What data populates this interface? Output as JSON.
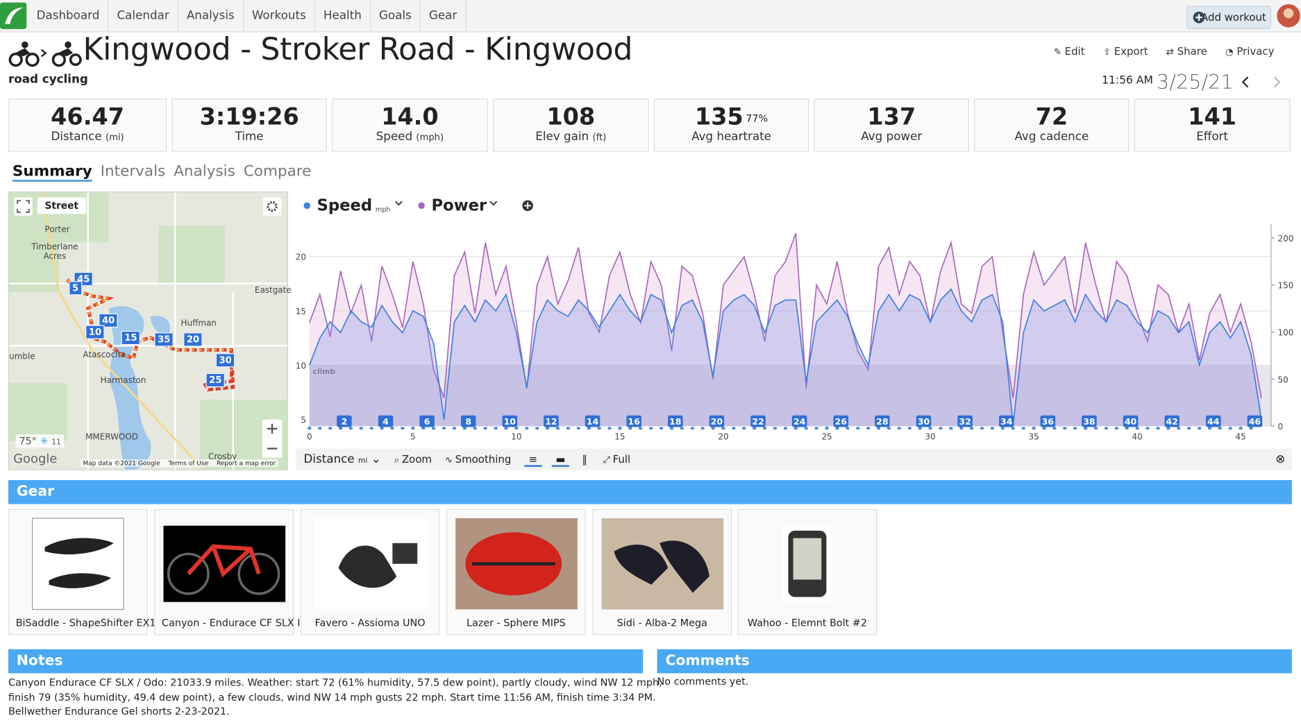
{
  "nav": {
    "items": [
      "Dashboard",
      "Calendar",
      "Analysis",
      "Workouts",
      "Health",
      "Goals",
      "Gear"
    ],
    "add_workout": "Add workout"
  },
  "header": {
    "title": "Kingwood - Stroker Road - Kingwood",
    "sport": "road cycling",
    "actions": [
      "Edit",
      "Export",
      "Share",
      "Privacy"
    ],
    "time": "11:56 AM",
    "date": "3/25/21"
  },
  "stats": [
    {
      "value": "46.47",
      "label": "Distance",
      "unit": "(mi)"
    },
    {
      "value": "3:19:26",
      "label": "Time"
    },
    {
      "value": "14.0",
      "label": "Speed",
      "unit": "(mph)"
    },
    {
      "value": "108",
      "label": "Elev gain",
      "unit": "(ft)"
    },
    {
      "value": "135",
      "sup": "77%",
      "label": "Avg heartrate"
    },
    {
      "value": "137",
      "label": "Avg power"
    },
    {
      "value": "72",
      "label": "Avg cadence"
    },
    {
      "value": "141",
      "label": "Effort"
    }
  ],
  "tabs": [
    "Summary",
    "Intervals",
    "Analysis",
    "Compare"
  ],
  "map": {
    "view": "Street",
    "places": [
      "Porter",
      "Timberlane Acres",
      "Eastgate",
      "Huffman",
      "Atascocita",
      "Harmaston",
      "umble",
      "MMERWOOD",
      "Crosby"
    ],
    "markers": [
      "45",
      "5",
      "40",
      "10",
      "15",
      "35",
      "20",
      "30",
      "25"
    ],
    "temperature": "75°",
    "wind": "11",
    "logo": "Google",
    "attribution": "Map data ©2021 Google",
    "terms": "Terms of Use",
    "report": "Report a map error"
  },
  "chart_data": {
    "type": "line",
    "x": [
      0,
      0.5,
      1,
      1.5,
      2,
      2.5,
      3,
      3.5,
      4,
      4.5,
      5,
      5.5,
      6,
      6.5,
      7,
      7.5,
      8,
      8.5,
      9,
      9.5,
      10,
      10.5,
      11,
      11.5,
      12,
      12.5,
      13,
      13.5,
      14,
      14.5,
      15,
      15.5,
      16,
      16.5,
      17,
      17.5,
      18,
      18.5,
      19,
      19.5,
      20,
      20.5,
      21,
      21.5,
      22,
      22.5,
      23,
      23.5,
      24,
      24.5,
      25,
      25.5,
      26,
      26.5,
      27,
      27.5,
      28,
      28.5,
      29,
      29.5,
      30,
      30.5,
      31,
      31.5,
      32,
      32.5,
      33,
      33.5,
      34,
      34.5,
      35,
      35.5,
      36,
      36.5,
      37,
      37.5,
      38,
      38.5,
      39,
      39.5,
      40,
      40.5,
      41,
      41.5,
      42,
      42.5,
      43,
      43.5,
      44,
      44.5,
      45,
      45.5,
      46
    ],
    "series": [
      {
        "name": "Speed",
        "unit": "mph",
        "color": "#3f7fe0",
        "values": [
          10,
          12.5,
          14,
          13,
          15,
          14,
          13.5,
          15.5,
          14,
          13,
          15,
          14.5,
          12,
          5,
          14,
          15.5,
          14,
          16,
          15,
          16.5,
          13,
          8,
          14,
          16,
          15,
          14.5,
          16,
          15,
          13.5,
          15,
          16.5,
          15,
          14,
          16.5,
          16,
          13,
          15.5,
          16,
          14,
          9,
          15,
          16,
          16.5,
          15.5,
          13,
          15.5,
          16,
          16,
          8.5,
          14,
          15,
          16,
          14.5,
          12,
          10,
          15,
          16.5,
          15,
          16.5,
          16,
          14,
          16,
          17,
          15,
          14,
          16,
          16.5,
          14,
          4.5,
          13,
          16,
          15,
          15.5,
          16,
          14,
          16.5,
          15,
          14,
          16,
          15.5,
          14,
          13,
          15,
          14.5,
          13,
          14,
          10,
          13,
          14,
          12.5,
          14,
          11,
          5
        ]
      },
      {
        "name": "Power",
        "color": "#a567bd",
        "axis": "y2",
        "values": [
          110,
          140,
          95,
          165,
          120,
          150,
          90,
          170,
          140,
          105,
          175,
          130,
          60,
          30,
          160,
          185,
          120,
          195,
          140,
          170,
          110,
          40,
          150,
          180,
          130,
          155,
          190,
          120,
          100,
          160,
          185,
          140,
          110,
          175,
          150,
          80,
          170,
          160,
          120,
          50,
          150,
          165,
          180,
          140,
          90,
          160,
          175,
          205,
          40,
          150,
          130,
          175,
          120,
          80,
          60,
          170,
          190,
          140,
          175,
          160,
          110,
          165,
          195,
          130,
          120,
          170,
          180,
          100,
          30,
          140,
          185,
          150,
          165,
          180,
          120,
          195,
          150,
          110,
          175,
          160,
          120,
          90,
          150,
          140,
          100,
          130,
          70,
          120,
          140,
          100,
          130,
          90,
          30
        ]
      }
    ],
    "xlim": [
      0,
      46.47
    ],
    "xticks": [
      0,
      5,
      10,
      15,
      20,
      25,
      30,
      35,
      40,
      45
    ],
    "ylim": [
      4.4,
      23
    ],
    "yticks": [
      5,
      10,
      15,
      20
    ],
    "y2lim": [
      0,
      215
    ],
    "y2ticks": [
      0,
      50,
      100,
      150,
      200
    ],
    "grid": true,
    "annotation": "climb",
    "mile_markers": [
      2,
      4,
      6,
      8,
      10,
      12,
      14,
      16,
      18,
      20,
      22,
      24,
      26,
      28,
      30,
      32,
      34,
      36,
      38,
      40,
      42,
      44,
      46
    ]
  },
  "chart_toolbar": {
    "x_label": "Distance",
    "x_unit": "mi",
    "buttons": [
      "Zoom",
      "Smoothing",
      "Full"
    ]
  },
  "gear": {
    "title": "Gear",
    "items": [
      "BiSaddle - ShapeShifter EX1",
      "Canyon - Endurace CF SLX I",
      "Favero - Assioma UNO",
      "Lazer - Sphere MIPS",
      "Sidi - Alba-2 Mega",
      "Wahoo - Elemnt Bolt #2"
    ]
  },
  "notes": {
    "title": "Notes",
    "lines": [
      "Canyon Endurace CF SLX / Odo: 21033.9 miles. Weather: start 72 (61% humidity, 57.5 dew point), partly cloudy, wind NW 12 mph;",
      "finish 79 (35% humidity, 49.4 dew point), a few clouds, wind NW 14 mph gusts 22 mph. Start time 11:56 AM, finish time 3:34 PM.",
      "Bellwether Endurance Gel shorts 2-23-2021."
    ]
  },
  "comments": {
    "title": "Comments",
    "text": "No comments yet."
  }
}
